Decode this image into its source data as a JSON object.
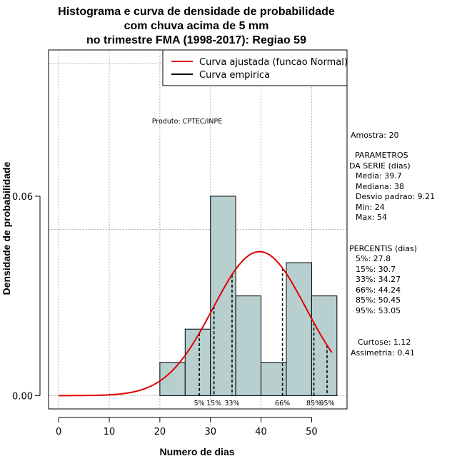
{
  "chart_data": {
    "type": "bar",
    "title": [
      "Histograma e curva de densidade de probabilidade",
      "com chuva acima de 5 mm",
      "no trimestre FMA (1998-2017): Regiao 59"
    ],
    "xlabel": "Numero de dias",
    "ylabel": "Densidade de probabilidade",
    "xlim": [
      -2,
      57
    ],
    "ylim": [
      -0.004,
      0.104
    ],
    "x_ticks": [
      0,
      10,
      20,
      30,
      40,
      50
    ],
    "y_ticks": [
      0.0,
      0.06
    ],
    "y_tick_labels": [
      "0.00",
      "0.06"
    ],
    "grid_x": [
      0,
      10,
      20,
      30,
      40,
      50
    ],
    "grid_y": [
      0.0,
      0.05,
      0.1
    ],
    "bins": [
      {
        "from": 20,
        "to": 25,
        "density": 0.01
      },
      {
        "from": 25,
        "to": 30,
        "density": 0.02
      },
      {
        "from": 30,
        "to": 35,
        "density": 0.06
      },
      {
        "from": 35,
        "to": 40,
        "density": 0.03
      },
      {
        "from": 40,
        "to": 45,
        "density": 0.01
      },
      {
        "from": 45,
        "to": 50,
        "density": 0.04
      },
      {
        "from": 50,
        "to": 55,
        "density": 0.03
      }
    ],
    "normal_fit": {
      "mean": 39.7,
      "sd": 9.21,
      "x_from": 0,
      "x_to": 54
    },
    "percentile_lines": [
      {
        "label": "5%",
        "value": 27.8
      },
      {
        "label": "15%",
        "value": 30.7
      },
      {
        "label": "33%",
        "value": 34.27
      },
      {
        "label": "66%",
        "value": 44.24
      },
      {
        "label": "85%",
        "value": 50.45
      },
      {
        "label": "95%",
        "value": 53.05
      }
    ],
    "legend": [
      {
        "label": "Curva ajustada (funcao Normal)",
        "color": "#e00000"
      },
      {
        "label": "Curva empirica",
        "color": "#000000"
      }
    ],
    "bar_color": "#b7cfcf",
    "credit": "Produto: CPTEC/INPE"
  },
  "stats": {
    "amostra": "Amostra: 20",
    "param_title_1": "PARAMETROS",
    "param_title_2": "DA SERIE (dias)",
    "media": "Media: 39.7",
    "mediana": "Mediana: 38",
    "desvio": "Desvio padrao: 9.21",
    "min": "Min: 24",
    "max": "Max: 54",
    "percentis_title": "PERCENTIS (dias)",
    "p5": "5%: 27.8",
    "p15": "15%: 30.7",
    "p33": "33%: 34.27",
    "p66": "66%: 44.24",
    "p85": "85%: 50.45",
    "p95": "95%: 53.05",
    "curtose": "Curtose: 1.12",
    "assimetria": "Assimetria: 0.41"
  }
}
